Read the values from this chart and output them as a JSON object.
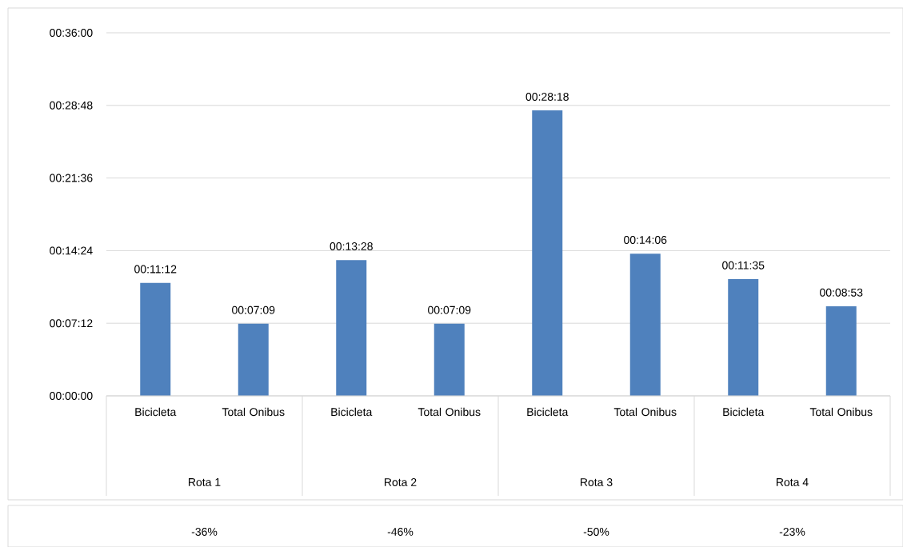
{
  "chart_data": {
    "type": "bar",
    "categories": [
      "Bicicleta",
      "Total Onibus",
      "Bicicleta",
      "Total Onibus",
      "Bicicleta",
      "Total Onibus",
      "Bicicleta",
      "Total Onibus"
    ],
    "values": [
      11.2,
      7.15,
      13.4667,
      7.15,
      28.3,
      14.1,
      11.5833,
      8.8833
    ],
    "value_labels": [
      "00:11:12",
      "00:07:09",
      "00:13:28",
      "00:07:09",
      "00:28:18",
      "00:14:06",
      "00:11:35",
      "00:08:53"
    ],
    "color": "#4f81bd",
    "ylim": [
      0,
      36
    ],
    "yticks": [
      {
        "value": 0,
        "label": "00:00:00"
      },
      {
        "value": 7.2,
        "label": "00:07:12"
      },
      {
        "value": 14.4,
        "label": "00:14:24"
      },
      {
        "value": 21.6,
        "label": "00:21:36"
      },
      {
        "value": 28.8,
        "label": "00:28:48"
      },
      {
        "value": 36,
        "label": "00:36:00"
      }
    ],
    "grid": "y",
    "annotations": [
      "Rota 1",
      "Rota 2",
      "Rota 3",
      "Rota 4",
      "-36%",
      "-46%",
      "-50%",
      "-23%"
    ]
  }
}
